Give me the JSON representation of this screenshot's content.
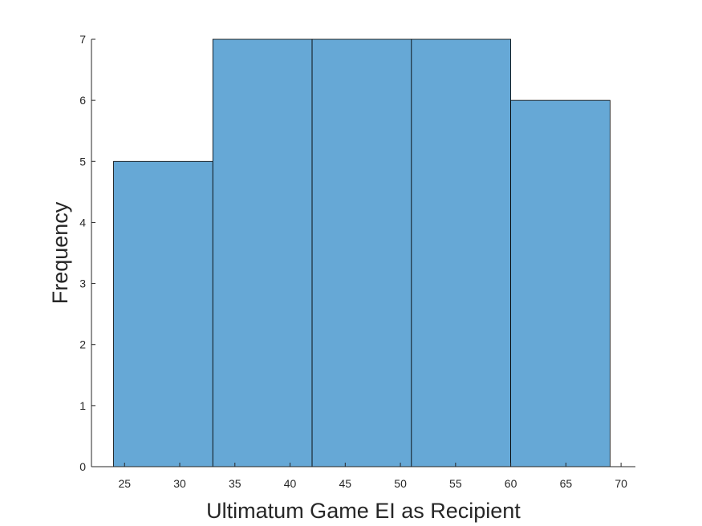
{
  "chart_data": {
    "type": "histogram",
    "xlabel": "Ultimatum Game EI as Recipient",
    "ylabel": "Frequency",
    "bins": [
      {
        "start": 24,
        "end": 33,
        "count": 5
      },
      {
        "start": 33,
        "end": 42,
        "count": 7
      },
      {
        "start": 42,
        "end": 51,
        "count": 7
      },
      {
        "start": 51,
        "end": 60,
        "count": 7
      },
      {
        "start": 60,
        "end": 69,
        "count": 6
      }
    ],
    "xlim": [
      22,
      71.3
    ],
    "ylim": [
      0,
      7
    ],
    "xticks": [
      25,
      30,
      35,
      40,
      45,
      50,
      55,
      60,
      65,
      70
    ],
    "yticks": [
      0,
      1,
      2,
      3,
      4,
      5,
      6,
      7
    ],
    "grid": false,
    "bar_color": "#66a8d6",
    "edge_color": "#000000"
  }
}
